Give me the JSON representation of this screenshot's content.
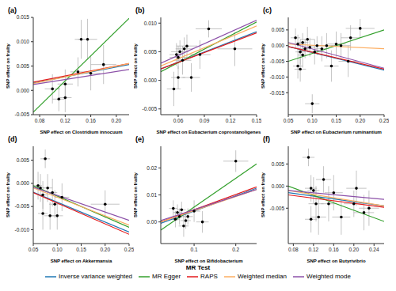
{
  "legend": "bottom",
  "legend_title": "MR Test",
  "chart_data": [
    {
      "type": "scatter",
      "title": "(a)",
      "x_label": "SNP effect on Clostridium innocuum",
      "y_label": "SNP effect on frailty",
      "xlim": [
        0.07,
        0.22
      ],
      "xticks": [
        0.08,
        0.12,
        0.16,
        {
          "value": 0.2,
          "label": "0.20"
        }
      ],
      "ylim": [
        -0.005,
        0.015
      ],
      "yticks": [
        -0.005,
        {
          "value": 0,
          "label": "0.000"
        },
        0.005,
        {
          "value": 0.01,
          "label": "0.010"
        },
        0.015
      ],
      "x": [
        0.1,
        0.11,
        0.12,
        0.12,
        0.14,
        0.145,
        0.155,
        0.16,
        0.18
      ],
      "y": [
        0.0003,
        -0.0018,
        -0.0015,
        0.0013,
        0.0038,
        0.0105,
        0.0105,
        0.0035,
        0.0053
      ],
      "x_error": [
        0.012,
        0.01,
        0.01,
        0.012,
        0.012,
        0.01,
        0.015,
        0.015,
        0.02
      ],
      "y_error": [
        0.003,
        0.0025,
        0.003,
        0.003,
        0.003,
        0.004,
        0.0042,
        0.0035,
        0.004
      ],
      "series": [
        {
          "name": "Inverse variance weighted",
          "color": "#1f78b4",
          "x": [
            0.07,
            0.22
          ],
          "values": [
            0.0015,
            0.0053
          ]
        },
        {
          "name": "MR Egger",
          "color": "#33a02c",
          "x": [
            0.07,
            0.22
          ],
          "values": [
            -0.0045,
            0.0148
          ]
        },
        {
          "name": "RAPS",
          "color": "#e31a1c",
          "x": [
            0.07,
            0.22
          ],
          "values": [
            0.0017,
            0.0055
          ]
        },
        {
          "name": "Weighted median",
          "color": "#fdae61",
          "x": [
            0.07,
            0.22
          ],
          "values": [
            0.0014,
            0.0055
          ]
        },
        {
          "name": "Weighted mode",
          "color": "#8c50a8",
          "x": [
            0.07,
            0.22
          ],
          "values": [
            0.0012,
            0.0043
          ]
        }
      ]
    },
    {
      "type": "scatter",
      "title": "(b)",
      "x_label": "SNP effect on Eubacterium coprostanoligenes",
      "y_label": "SNP effect on frailty",
      "xlim": [
        0.04,
        0.15
      ],
      "xticks": [
        0.06,
        0.09,
        0.12,
        0.15
      ],
      "ylim": [
        -0.006,
        0.011
      ],
      "yticks": [
        -0.005,
        {
          "value": 0,
          "label": "0.000"
        },
        0.005,
        {
          "value": 0.01,
          "label": "0.010"
        }
      ],
      "x": [
        0.055,
        0.058,
        0.06,
        0.06,
        0.062,
        0.065,
        0.067,
        0.07,
        0.075,
        0.085,
        0.095,
        0.125
      ],
      "y": [
        -0.0015,
        0.0045,
        0.004,
        0.0005,
        0.005,
        0.0035,
        0.0055,
        0.006,
        0.0005,
        0.0045,
        0.009,
        0.0055
      ],
      "x_error": [
        0.008,
        0.008,
        0.01,
        0.008,
        0.01,
        0.01,
        0.01,
        0.012,
        0.01,
        0.012,
        0.015,
        0.02
      ],
      "y_error": [
        0.003,
        0.002,
        0.002,
        0.002,
        0.002,
        0.0025,
        0.002,
        0.002,
        0.0025,
        0.0025,
        0.0015,
        0.003
      ],
      "series": [
        {
          "name": "Inverse variance weighted",
          "color": "#1f78b4",
          "x": [
            0.04,
            0.15
          ],
          "values": [
            0.002,
            0.0085
          ]
        },
        {
          "name": "MR Egger",
          "color": "#33a02c",
          "x": [
            0.04,
            0.15
          ],
          "values": [
            0.0015,
            0.0102
          ]
        },
        {
          "name": "RAPS",
          "color": "#e31a1c",
          "x": [
            0.04,
            0.15
          ],
          "values": [
            0.002,
            0.0083
          ]
        },
        {
          "name": "Weighted median",
          "color": "#fdae61",
          "x": [
            0.04,
            0.15
          ],
          "values": [
            0.0025,
            0.0095
          ]
        },
        {
          "name": "Weighted mode",
          "color": "#8c50a8",
          "x": [
            0.04,
            0.15
          ],
          "values": [
            0.003,
            0.0105
          ]
        }
      ]
    },
    {
      "type": "scatter",
      "title": "(c)",
      "x_label": "SNP effect on Eubacterium ruminantium",
      "y_label": "SNP effect on frailty",
      "xlim": [
        0.05,
        0.25
      ],
      "xticks": [
        0.05,
        {
          "value": 0.1,
          "label": "0.10"
        },
        0.15,
        {
          "value": 0.2,
          "label": "0.20"
        },
        0.25
      ],
      "ylim": [
        -0.022,
        0.009
      ],
      "yticks": [
        -0.015,
        {
          "value": -0.01,
          "label": "-0.010"
        },
        -0.005,
        {
          "value": 0,
          "label": "0.000"
        },
        0.005
      ],
      "x": [
        0.065,
        0.07,
        0.07,
        0.075,
        0.075,
        0.08,
        0.08,
        0.085,
        0.09,
        0.095,
        0.1,
        0.105,
        0.11,
        0.12,
        0.13,
        0.14,
        0.15,
        0.16,
        0.175,
        0.18,
        0.2
      ],
      "y": [
        0.0025,
        -0.0065,
        0.0005,
        -0.002,
        -0.0075,
        0.001,
        -0.003,
        -0.001,
        0.002,
        -0.0005,
        -0.0185,
        -0.002,
        0,
        -0.001,
        0,
        -0.0065,
        0.0005,
        0,
        -0.005,
        0.0025,
        0.0055
      ],
      "x_error": [
        0.01,
        0.01,
        0.012,
        0.01,
        0.012,
        0.012,
        0.01,
        0.012,
        0.015,
        0.012,
        0.015,
        0.015,
        0.015,
        0.015,
        0.018,
        0.015,
        0.02,
        0.02,
        0.02,
        0.02,
        0.03
      ],
      "y_error": [
        0.003,
        0.004,
        0.003,
        0.004,
        0.004,
        0.003,
        0.004,
        0.003,
        0.004,
        0.003,
        0.003,
        0.004,
        0.003,
        0.004,
        0.004,
        0.005,
        0.004,
        0.004,
        0.005,
        0.004,
        0.003
      ],
      "series": [
        {
          "name": "Inverse variance weighted",
          "color": "#1f78b4",
          "x": [
            0.05,
            0.25
          ],
          "values": [
            -0.0003,
            -0.0078
          ]
        },
        {
          "name": "MR Egger",
          "color": "#33a02c",
          "x": [
            0.05,
            0.25
          ],
          "values": [
            -0.005,
            0.005
          ]
        },
        {
          "name": "RAPS",
          "color": "#e31a1c",
          "x": [
            0.05,
            0.25
          ],
          "values": [
            -0.0003,
            -0.0075
          ]
        },
        {
          "name": "Weighted median",
          "color": "#fdae61",
          "x": [
            0.05,
            0.25
          ],
          "values": [
            0.0005,
            -0.001
          ]
        },
        {
          "name": "Weighted mode",
          "color": "#8c50a8",
          "x": [
            0.05,
            0.25
          ],
          "values": [
            0.001,
            -0.0072
          ]
        }
      ]
    },
    {
      "type": "scatter",
      "title": "(d)",
      "x_label": "SNP effect on Akkermansia",
      "y_label": "SNP effect on frailty",
      "xlim": [
        0.05,
        0.25
      ],
      "xticks": [
        0.05,
        {
          "value": 0.1,
          "label": "0.10"
        },
        0.15,
        {
          "value": 0.2,
          "label": "0.20"
        },
        0.25
      ],
      "ylim": [
        -0.013,
        0.008
      ],
      "yticks": [
        {
          "value": -0.01,
          "label": "-0.010"
        },
        -0.005,
        {
          "value": 0,
          "label": "0.000"
        },
        0.005
      ],
      "x": [
        0.06,
        0.065,
        0.07,
        0.07,
        0.075,
        0.08,
        0.085,
        0.09,
        0.095,
        0.1,
        0.11,
        0.2
      ],
      "y": [
        -0.0005,
        -0.001,
        -0.0065,
        -0.0025,
        0.0053,
        -0.001,
        -0.007,
        -0.002,
        -0.0045,
        -0.007,
        -0.003,
        -0.0045
      ],
      "x_error": [
        0.008,
        0.008,
        0.01,
        0.01,
        0.01,
        0.01,
        0.012,
        0.01,
        0.012,
        0.012,
        0.015,
        0.03
      ],
      "y_error": [
        0.003,
        0.003,
        0.0035,
        0.003,
        0.002,
        0.003,
        0.003,
        0.003,
        0.003,
        0.003,
        0.003,
        0.003
      ],
      "series": [
        {
          "name": "Inverse variance weighted",
          "color": "#1f78b4",
          "x": [
            0.05,
            0.25
          ],
          "values": [
            -0.0019,
            -0.0105
          ]
        },
        {
          "name": "MR Egger",
          "color": "#33a02c",
          "x": [
            0.05,
            0.25
          ],
          "values": [
            -0.0005,
            -0.0095
          ]
        },
        {
          "name": "RAPS",
          "color": "#e31a1c",
          "x": [
            0.05,
            0.25
          ],
          "values": [
            -0.002,
            -0.011
          ]
        },
        {
          "name": "Weighted median",
          "color": "#fdae61",
          "x": [
            0.05,
            0.25
          ],
          "values": [
            -0.001,
            -0.009
          ]
        },
        {
          "name": "Weighted mode",
          "color": "#8c50a8",
          "x": [
            0.05,
            0.25
          ],
          "values": [
            -0.0008,
            -0.008
          ]
        }
      ]
    },
    {
      "type": "scatter",
      "title": "(e)",
      "x_label": "SNP effect on Bifidobacterium",
      "y_label": "SNP effect on frailty",
      "xlim": [
        0.02,
        0.25
      ],
      "xticks": [
        {
          "value": 0.1,
          "label": "0.1"
        },
        {
          "value": 0.2,
          "label": "0.2"
        }
      ],
      "ylim": [
        -0.008,
        0.028
      ],
      "yticks": [
        {
          "value": 0,
          "label": "0.00"
        },
        {
          "value": 0.01,
          "label": "0.01"
        },
        {
          "value": 0.02,
          "label": "0.02"
        }
      ],
      "x": [
        0.05,
        0.055,
        0.06,
        0.065,
        0.07,
        0.075,
        0.08,
        0.085,
        0.1,
        0.12,
        0.2
      ],
      "y": [
        0.005,
        0.001,
        0.0035,
        0.002,
        0.0045,
        -0.0015,
        0.0005,
        0.002,
        0.004,
        0,
        0.0225
      ],
      "x_error": [
        0.01,
        0.01,
        0.01,
        0.012,
        0.01,
        0.012,
        0.012,
        0.012,
        0.015,
        0.015,
        0.03
      ],
      "y_error": [
        0.003,
        0.003,
        0.003,
        0.003,
        0.003,
        0.004,
        0.003,
        0.003,
        0.004,
        0.004,
        0.004
      ],
      "series": [
        {
          "name": "Inverse variance weighted",
          "color": "#1f78b4",
          "x": [
            0.02,
            0.25
          ],
          "values": [
            -0.0005,
            0.0125
          ]
        },
        {
          "name": "MR Egger",
          "color": "#33a02c",
          "x": [
            0.02,
            0.25
          ],
          "values": [
            -0.003,
            0.0215
          ]
        },
        {
          "name": "RAPS",
          "color": "#e31a1c",
          "x": [
            0.02,
            0.25
          ],
          "values": [
            0,
            0.013
          ]
        },
        {
          "name": "Weighted median",
          "color": "#fdae61",
          "x": [
            0.02,
            0.25
          ],
          "values": [
            0,
            0.012
          ]
        },
        {
          "name": "Weighted mode",
          "color": "#8c50a8",
          "x": [
            0.02,
            0.25
          ],
          "values": [
            0.0005,
            0.012
          ]
        }
      ]
    },
    {
      "type": "scatter",
      "title": "(f)",
      "x_label": "SNP effect on Butyrivibrio",
      "y_label": "SNP effect on frailty",
      "xlim": [
        0.07,
        0.26
      ],
      "xticks": [
        0.08,
        0.12,
        0.16,
        {
          "value": 0.2,
          "label": "0.20"
        },
        0.24
      ],
      "ylim": [
        -0.013,
        0.009
      ],
      "yticks": [
        -0.005,
        {
          "value": 0,
          "label": "0.000"
        },
        0.005
      ],
      "x": [
        0.11,
        0.115,
        0.115,
        0.12,
        0.125,
        0.13,
        0.14,
        0.15,
        0.16,
        0.175,
        0.2,
        0.205,
        0.22,
        0.23
      ],
      "y": [
        0.0065,
        -0.0075,
        -0.0005,
        -0.001,
        -0.004,
        -0.007,
        0.0015,
        -0.004,
        -0.0015,
        -0.007,
        -0.004,
        -0.0005,
        -0.006,
        -0.005
      ],
      "x_error": [
        0.012,
        0.012,
        0.012,
        0.012,
        0.015,
        0.015,
        0.015,
        0.015,
        0.018,
        0.018,
        0.02,
        0.02,
        0.02,
        0.02
      ],
      "y_error": [
        0.002,
        0.003,
        0.003,
        0.003,
        0.004,
        0.004,
        0.003,
        0.004,
        0.004,
        0.004,
        0.003,
        0.004,
        0.004,
        0.004
      ],
      "series": [
        {
          "name": "Inverse variance weighted",
          "color": "#1f78b4",
          "x": [
            0.07,
            0.26
          ],
          "values": [
            -0.0015,
            -0.0045
          ]
        },
        {
          "name": "MR Egger",
          "color": "#33a02c",
          "x": [
            0.07,
            0.26
          ],
          "values": [
            0,
            -0.008
          ]
        },
        {
          "name": "RAPS",
          "color": "#e31a1c",
          "x": [
            0.07,
            0.26
          ],
          "values": [
            -0.002,
            -0.0048
          ]
        },
        {
          "name": "Weighted median",
          "color": "#fdae61",
          "x": [
            0.07,
            0.26
          ],
          "values": [
            -0.001,
            -0.0045
          ]
        },
        {
          "name": "Weighted mode",
          "color": "#8c50a8",
          "x": [
            0.07,
            0.26
          ],
          "values": [
            -0.001,
            -0.003
          ]
        }
      ]
    }
  ]
}
